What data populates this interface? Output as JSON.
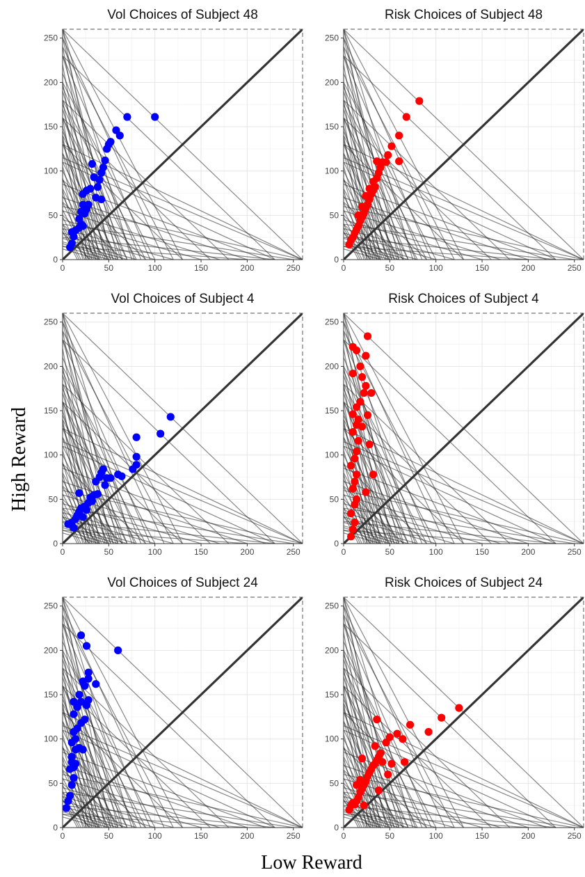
{
  "chart_data": [
    {
      "type": "scatter",
      "title": "Vol Choices of Subject 48",
      "color": "#0000ff",
      "xlim": [
        0,
        260
      ],
      "ylim": [
        0,
        260
      ],
      "ticks": [
        0,
        50,
        100,
        150,
        200,
        250
      ],
      "points": [
        [
          8,
          14
        ],
        [
          10,
          18
        ],
        [
          12,
          26
        ],
        [
          10,
          31
        ],
        [
          14,
          33
        ],
        [
          18,
          36
        ],
        [
          20,
          40
        ],
        [
          22,
          38
        ],
        [
          18,
          46
        ],
        [
          20,
          54
        ],
        [
          22,
          62
        ],
        [
          24,
          52
        ],
        [
          26,
          57
        ],
        [
          28,
          62
        ],
        [
          22,
          74
        ],
        [
          26,
          78
        ],
        [
          30,
          80
        ],
        [
          34,
          93
        ],
        [
          32,
          108
        ],
        [
          36,
          70
        ],
        [
          38,
          82
        ],
        [
          40,
          90
        ],
        [
          42,
          98
        ],
        [
          44,
          104
        ],
        [
          46,
          112
        ],
        [
          42,
          68
        ],
        [
          48,
          125
        ],
        [
          50,
          130
        ],
        [
          52,
          133
        ],
        [
          58,
          146
        ],
        [
          62,
          140
        ],
        [
          70,
          161
        ],
        [
          100,
          161
        ]
      ]
    },
    {
      "type": "scatter",
      "title": "Risk Choices of Subject 48",
      "color": "#ff0000",
      "xlim": [
        0,
        260
      ],
      "ylim": [
        0,
        260
      ],
      "ticks": [
        0,
        50,
        100,
        150,
        200,
        250
      ],
      "points": [
        [
          6,
          17
        ],
        [
          8,
          22
        ],
        [
          10,
          25
        ],
        [
          12,
          30
        ],
        [
          14,
          34
        ],
        [
          16,
          38
        ],
        [
          18,
          44
        ],
        [
          20,
          48
        ],
        [
          22,
          52
        ],
        [
          24,
          58
        ],
        [
          26,
          62
        ],
        [
          28,
          68
        ],
        [
          30,
          74
        ],
        [
          32,
          78
        ],
        [
          34,
          82
        ],
        [
          36,
          92
        ],
        [
          38,
          98
        ],
        [
          40,
          104
        ],
        [
          36,
          111
        ],
        [
          42,
          110
        ],
        [
          46,
          110
        ],
        [
          48,
          118
        ],
        [
          52,
          128
        ],
        [
          60,
          140
        ],
        [
          60,
          111
        ],
        [
          68,
          161
        ],
        [
          82,
          179
        ],
        [
          16,
          50
        ],
        [
          20,
          60
        ],
        [
          24,
          72
        ],
        [
          28,
          80
        ],
        [
          32,
          88
        ]
      ]
    },
    {
      "type": "scatter",
      "title": "Vol Choices of Subject 4",
      "color": "#0000ff",
      "xlim": [
        0,
        260
      ],
      "ylim": [
        0,
        260
      ],
      "ticks": [
        0,
        50,
        100,
        150,
        200,
        250
      ],
      "points": [
        [
          6,
          22
        ],
        [
          10,
          24
        ],
        [
          12,
          18
        ],
        [
          14,
          28
        ],
        [
          16,
          32
        ],
        [
          18,
          36
        ],
        [
          18,
          57
        ],
        [
          20,
          40
        ],
        [
          22,
          30
        ],
        [
          24,
          42
        ],
        [
          26,
          38
        ],
        [
          28,
          46
        ],
        [
          30,
          52
        ],
        [
          32,
          48
        ],
        [
          34,
          55
        ],
        [
          36,
          70
        ],
        [
          38,
          56
        ],
        [
          40,
          75
        ],
        [
          42,
          80
        ],
        [
          44,
          84
        ],
        [
          46,
          66
        ],
        [
          48,
          74
        ],
        [
          52,
          74
        ],
        [
          60,
          78
        ],
        [
          64,
          76
        ],
        [
          76,
          84
        ],
        [
          80,
          98
        ],
        [
          80,
          89
        ],
        [
          80,
          120
        ],
        [
          106,
          124
        ],
        [
          117,
          143
        ]
      ]
    },
    {
      "type": "scatter",
      "title": "Risk Choices of Subject 4",
      "color": "#ff0000",
      "xlim": [
        0,
        260
      ],
      "ylim": [
        0,
        260
      ],
      "ticks": [
        0,
        50,
        100,
        150,
        200,
        250
      ],
      "points": [
        [
          8,
          8
        ],
        [
          10,
          16
        ],
        [
          12,
          24
        ],
        [
          8,
          34
        ],
        [
          12,
          44
        ],
        [
          14,
          50
        ],
        [
          10,
          62
        ],
        [
          12,
          70
        ],
        [
          14,
          78
        ],
        [
          8,
          88
        ],
        [
          12,
          96
        ],
        [
          14,
          104
        ],
        [
          16,
          116
        ],
        [
          10,
          126
        ],
        [
          14,
          134
        ],
        [
          16,
          140
        ],
        [
          10,
          146
        ],
        [
          14,
          154
        ],
        [
          20,
          132
        ],
        [
          18,
          160
        ],
        [
          22,
          170
        ],
        [
          24,
          178
        ],
        [
          20,
          188
        ],
        [
          10,
          192
        ],
        [
          18,
          200
        ],
        [
          26,
          145
        ],
        [
          24,
          212
        ],
        [
          10,
          222
        ],
        [
          14,
          218
        ],
        [
          26,
          234
        ],
        [
          30,
          170
        ],
        [
          28,
          112
        ],
        [
          24,
          58
        ],
        [
          32,
          78
        ]
      ]
    },
    {
      "type": "scatter",
      "title": "Vol Choices of Subject 24",
      "color": "#0000ff",
      "xlim": [
        0,
        260
      ],
      "ylim": [
        0,
        260
      ],
      "ticks": [
        0,
        50,
        100,
        150,
        200,
        250
      ],
      "points": [
        [
          4,
          22
        ],
        [
          6,
          30
        ],
        [
          8,
          36
        ],
        [
          10,
          48
        ],
        [
          12,
          56
        ],
        [
          8,
          66
        ],
        [
          10,
          74
        ],
        [
          12,
          68
        ],
        [
          14,
          72
        ],
        [
          10,
          80
        ],
        [
          14,
          88
        ],
        [
          18,
          90
        ],
        [
          22,
          88
        ],
        [
          10,
          96
        ],
        [
          14,
          100
        ],
        [
          12,
          108
        ],
        [
          16,
          112
        ],
        [
          20,
          118
        ],
        [
          24,
          122
        ],
        [
          12,
          128
        ],
        [
          16,
          136
        ],
        [
          20,
          142
        ],
        [
          26,
          138
        ],
        [
          12,
          142
        ],
        [
          28,
          144
        ],
        [
          18,
          150
        ],
        [
          24,
          160
        ],
        [
          28,
          168
        ],
        [
          36,
          162
        ],
        [
          22,
          165
        ],
        [
          28,
          175
        ],
        [
          20,
          217
        ],
        [
          26,
          205
        ],
        [
          60,
          200
        ]
      ]
    },
    {
      "type": "scatter",
      "title": "Risk Choices of Subject 24",
      "color": "#ff0000",
      "xlim": [
        0,
        260
      ],
      "ylim": [
        0,
        260
      ],
      "ticks": [
        0,
        50,
        100,
        150,
        200,
        250
      ],
      "points": [
        [
          6,
          20
        ],
        [
          8,
          25
        ],
        [
          10,
          28
        ],
        [
          12,
          26
        ],
        [
          14,
          30
        ],
        [
          16,
          34
        ],
        [
          18,
          40
        ],
        [
          20,
          44
        ],
        [
          22,
          48
        ],
        [
          24,
          52
        ],
        [
          26,
          58
        ],
        [
          28,
          62
        ],
        [
          30,
          66
        ],
        [
          32,
          70
        ],
        [
          34,
          72
        ],
        [
          36,
          76
        ],
        [
          38,
          80
        ],
        [
          40,
          84
        ],
        [
          42,
          74
        ],
        [
          22,
          25
        ],
        [
          14,
          48
        ],
        [
          18,
          54
        ],
        [
          20,
          78
        ],
        [
          34,
          92
        ],
        [
          36,
          122
        ],
        [
          46,
          96
        ],
        [
          50,
          102
        ],
        [
          48,
          60
        ],
        [
          52,
          72
        ],
        [
          58,
          106
        ],
        [
          64,
          100
        ],
        [
          66,
          74
        ],
        [
          72,
          116
        ],
        [
          92,
          108
        ],
        [
          106,
          124
        ],
        [
          125,
          135
        ],
        [
          38,
          42
        ]
      ]
    }
  ],
  "axes": {
    "xlabel": "Low Reward",
    "ylabel": "High Reward"
  },
  "budget_lines": {
    "note": "",
    "intercepts": [
      [
        260,
        260
      ],
      [
        230,
        230
      ],
      [
        180,
        180
      ],
      [
        160,
        160
      ],
      [
        120,
        240
      ],
      [
        130,
        260
      ],
      [
        100,
        200
      ],
      [
        90,
        180
      ],
      [
        80,
        160
      ],
      [
        70,
        140
      ],
      [
        60,
        120
      ],
      [
        55,
        110
      ],
      [
        50,
        100
      ],
      [
        45,
        90
      ],
      [
        40,
        80
      ],
      [
        36,
        72
      ],
      [
        32,
        64
      ],
      [
        28,
        56
      ],
      [
        24,
        48
      ],
      [
        20,
        40
      ],
      [
        18,
        36
      ],
      [
        16,
        32
      ],
      [
        260,
        130
      ],
      [
        260,
        115
      ],
      [
        230,
        110
      ],
      [
        220,
        85
      ],
      [
        200,
        70
      ],
      [
        170,
        55
      ],
      [
        150,
        45
      ],
      [
        120,
        35
      ],
      [
        100,
        30
      ],
      [
        80,
        24
      ],
      [
        70,
        20
      ],
      [
        60,
        18
      ],
      [
        50,
        15
      ],
      [
        40,
        12
      ],
      [
        130,
        130
      ],
      [
        90,
        90
      ],
      [
        65,
        65
      ],
      [
        50,
        50
      ],
      [
        40,
        40
      ],
      [
        30,
        30
      ],
      [
        75,
        260
      ],
      [
        65,
        230
      ],
      [
        55,
        190
      ],
      [
        48,
        170
      ],
      [
        42,
        150
      ],
      [
        38,
        135
      ],
      [
        34,
        120
      ],
      [
        30,
        105
      ],
      [
        26,
        92
      ],
      [
        22,
        78
      ],
      [
        60,
        250
      ],
      [
        52,
        260
      ],
      [
        46,
        240
      ],
      [
        40,
        220
      ],
      [
        36,
        200
      ],
      [
        32,
        180
      ],
      [
        28,
        160
      ],
      [
        25,
        140
      ],
      [
        110,
        250
      ],
      [
        95,
        230
      ],
      [
        85,
        210
      ],
      [
        78,
        195
      ],
      [
        70,
        175
      ],
      [
        64,
        160
      ],
      [
        58,
        145
      ],
      [
        52,
        130
      ],
      [
        260,
        60
      ],
      [
        250,
        40
      ],
      [
        230,
        25
      ],
      [
        200,
        15
      ]
    ]
  },
  "colors": {
    "vol": "#0000ff",
    "risk": "#ff0000"
  }
}
